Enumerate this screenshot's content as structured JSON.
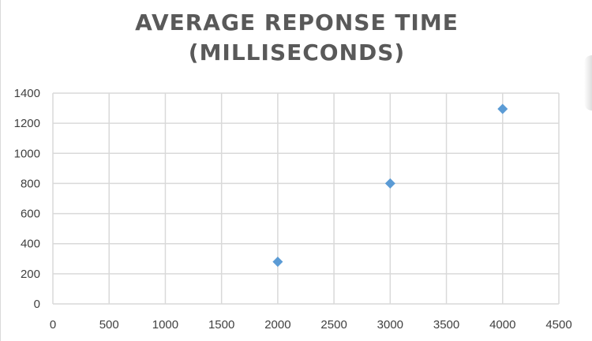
{
  "chart_data": {
    "type": "scatter",
    "title_lines": [
      "AVERAGE REPONSE TIME",
      "(MILLISECONDS)"
    ],
    "xlabel": "",
    "ylabel": "",
    "xlim": [
      0,
      4500
    ],
    "ylim": [
      0,
      1400
    ],
    "x_ticks": [
      0,
      500,
      1000,
      1500,
      2000,
      2500,
      3000,
      3500,
      4000,
      4500
    ],
    "y_ticks": [
      0,
      200,
      400,
      600,
      800,
      1000,
      1200,
      1400
    ],
    "grid": true,
    "legend": "none",
    "series": [
      {
        "color": "#5b9bd5",
        "marker": "diamond",
        "points": [
          {
            "x": 2000,
            "y": 280
          },
          {
            "x": 3000,
            "y": 800
          },
          {
            "x": 4000,
            "y": 1295
          }
        ]
      }
    ]
  }
}
